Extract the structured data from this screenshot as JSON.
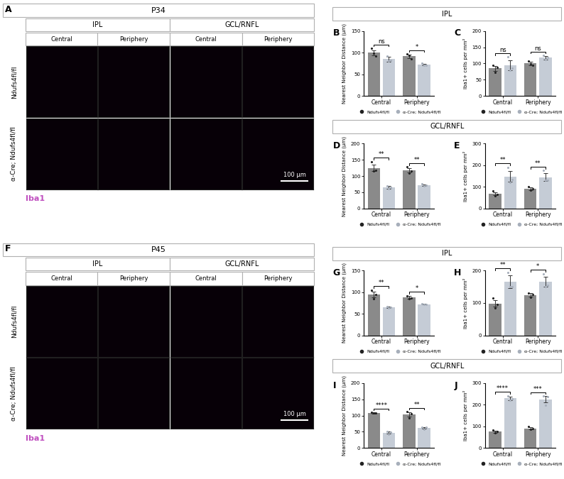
{
  "image_panels": [
    {
      "panel": "A",
      "title": "P34",
      "layers": [
        {
          "name": "IPL",
          "regions": [
            "Central",
            "Periphery"
          ]
        },
        {
          "name": "GCL/RNFL",
          "regions": [
            "Central",
            "Periphery"
          ]
        }
      ],
      "rows": [
        "Ndufs4fl/fl",
        "α-Cre; Ndufs4fl/fl"
      ],
      "scale_bar": "100 µm",
      "stain": "Iba1",
      "stain_color": "#c050c0"
    },
    {
      "panel": "F",
      "title": "P45",
      "layers": [
        {
          "name": "IPL",
          "regions": [
            "Central",
            "Periphery"
          ]
        },
        {
          "name": "GCL/RNFL",
          "regions": [
            "Central",
            "Periphery"
          ]
        }
      ],
      "rows": [
        "Ndufs4fl/fl",
        "α-Cre; Ndufs4fl/fl"
      ],
      "scale_bar": "100 µm",
      "stain": "Iba1",
      "stain_color": "#c050c0"
    }
  ],
  "chart_sections": [
    {
      "title": "IPL",
      "panels": [
        "B",
        "C"
      ]
    },
    {
      "title": "GCL/RNFL",
      "panels": [
        "D",
        "E"
      ]
    },
    {
      "title": "IPL",
      "panels": [
        "G",
        "H"
      ]
    },
    {
      "title": "GCL/RNFL",
      "panels": [
        "I",
        "J"
      ]
    }
  ],
  "chart_data": [
    {
      "panel": "B",
      "type": "bar",
      "y_label": "Nearest Neighbor Distance (µm)",
      "categories": [
        "Central",
        "Periphery"
      ],
      "series": [
        {
          "name": "Ndufs4fl/fl",
          "color": "#8a8a8a",
          "values": [
            100,
            92
          ],
          "errors": [
            6,
            4
          ],
          "points": [
            [
              110,
              98,
              93
            ],
            [
              97,
              94,
              85
            ]
          ]
        },
        {
          "name": "α-Cre; Ndufs4fl/fl",
          "color": "#c5ccd6",
          "values": [
            85,
            72
          ],
          "errors": [
            6,
            2
          ],
          "points": [
            [
              92,
              80,
              83
            ],
            [
              75,
              70,
              71
            ]
          ]
        }
      ],
      "significance": [
        "ns",
        "*"
      ],
      "ylim": [
        0,
        150
      ],
      "yticks": [
        0,
        50,
        100,
        150
      ],
      "legend": "bottom"
    },
    {
      "panel": "C",
      "type": "bar",
      "y_label": "Iba1+ cells per mm²",
      "categories": [
        "Central",
        "Periphery"
      ],
      "series": [
        {
          "name": "Ndufs4fl/fl",
          "color": "#8a8a8a",
          "values": [
            85,
            100
          ],
          "errors": [
            8,
            5
          ],
          "points": [
            [
              95,
              72,
              88
            ],
            [
              108,
              98,
              95
            ]
          ]
        },
        {
          "name": "α-Cre; Ndufs4fl/fl",
          "color": "#c5ccd6",
          "values": [
            95,
            118
          ],
          "errors": [
            15,
            5
          ],
          "points": [
            [
              120,
              80,
              85
            ],
            [
              125,
              112,
              118
            ]
          ]
        }
      ],
      "significance": [
        "ns",
        "ns"
      ],
      "ylim": [
        0,
        200
      ],
      "yticks": [
        0,
        50,
        100,
        150,
        200
      ],
      "legend": "bottom"
    },
    {
      "panel": "D",
      "type": "bar",
      "y_label": "Nearest Neighbor Distance (µm)",
      "categories": [
        "Central",
        "Periphery"
      ],
      "series": [
        {
          "name": "Ndufs4fl/fl",
          "color": "#8a8a8a",
          "values": [
            125,
            118
          ],
          "errors": [
            10,
            6
          ],
          "points": [
            [
              145,
              115,
              118
            ],
            [
              128,
              110,
              116
            ]
          ]
        },
        {
          "name": "α-Cre; Ndufs4fl/fl",
          "color": "#c5ccd6",
          "values": [
            65,
            72
          ],
          "errors": [
            5,
            2
          ],
          "points": [
            [
              70,
              60,
              65
            ],
            [
              75,
              70,
              72
            ]
          ]
        }
      ],
      "significance": [
        "**",
        "**"
      ],
      "ylim": [
        0,
        200
      ],
      "yticks": [
        0,
        50,
        100,
        150,
        200
      ],
      "legend": "bottom"
    },
    {
      "panel": "E",
      "type": "bar",
      "y_label": "Iba1+ cells per mm²",
      "categories": [
        "Central",
        "Periphery"
      ],
      "series": [
        {
          "name": "Ndufs4fl/fl",
          "color": "#8a8a8a",
          "values": [
            68,
            92
          ],
          "errors": [
            8,
            6
          ],
          "points": [
            [
              80,
              58,
              66
            ],
            [
              100,
              85,
              92
            ]
          ]
        },
        {
          "name": "α-Cre; Ndufs4fl/fl",
          "color": "#c5ccd6",
          "values": [
            148,
            145
          ],
          "errors": [
            25,
            18
          ],
          "points": [
            [
              190,
              120,
              135
            ],
            [
              175,
              130,
              130
            ]
          ]
        }
      ],
      "significance": [
        "**",
        "**"
      ],
      "ylim": [
        0,
        300
      ],
      "yticks": [
        0,
        100,
        200,
        300
      ],
      "legend": "bottom"
    },
    {
      "panel": "G",
      "type": "bar",
      "y_label": "Nearest Neighbor Distance (µm)",
      "categories": [
        "Central",
        "Periphery"
      ],
      "series": [
        {
          "name": "Ndufs4fl/fl",
          "color": "#8a8a8a",
          "values": [
            95,
            88
          ],
          "errors": [
            7,
            3
          ],
          "points": [
            [
              105,
              85,
              95
            ],
            [
              92,
              85,
              87
            ]
          ]
        },
        {
          "name": "α-Cre; Ndufs4fl/fl",
          "color": "#c5ccd6",
          "values": [
            65,
            72
          ],
          "errors": [
            2,
            1
          ],
          "points": [
            [
              67,
              63,
              65
            ],
            [
              73,
              71,
              72
            ]
          ]
        }
      ],
      "significance": [
        "**",
        "*"
      ],
      "ylim": [
        0,
        150
      ],
      "yticks": [
        0,
        50,
        100,
        150
      ],
      "legend": "bottom"
    },
    {
      "panel": "H",
      "type": "bar",
      "y_label": "Iba1+ cells per mm²",
      "categories": [
        "Central",
        "Periphery"
      ],
      "series": [
        {
          "name": "Ndufs4fl/fl",
          "color": "#8a8a8a",
          "values": [
            98,
            125
          ],
          "errors": [
            10,
            5
          ],
          "points": [
            [
              115,
              85,
              95
            ],
            [
              130,
              118,
              127
            ]
          ]
        },
        {
          "name": "α-Cre; Ndufs4fl/fl",
          "color": "#c5ccd6",
          "values": [
            165,
            165
          ],
          "errors": [
            20,
            15
          ],
          "points": [
            [
              195,
              150,
              150
            ],
            [
              190,
              150,
              155
            ]
          ]
        }
      ],
      "significance": [
        "**",
        "*"
      ],
      "ylim": [
        0,
        200
      ],
      "yticks": [
        0,
        100,
        200
      ],
      "legend": "bottom"
    },
    {
      "panel": "I",
      "type": "bar",
      "y_label": "Nearest Neighbor Distance (µm)",
      "categories": [
        "Central",
        "Periphery"
      ],
      "series": [
        {
          "name": "Ndufs4fl/fl",
          "color": "#8a8a8a",
          "values": [
            108,
            103
          ],
          "errors": [
            2,
            6
          ],
          "points": [
            [
              110,
              107,
              107
            ],
            [
              112,
              92,
              105
            ]
          ]
        },
        {
          "name": "α-Cre; Ndufs4fl/fl",
          "color": "#c5ccd6",
          "values": [
            47,
            62
          ],
          "errors": [
            3,
            3
          ],
          "points": [
            [
              50,
              43,
              48
            ],
            [
              65,
              58,
              63
            ]
          ]
        }
      ],
      "significance": [
        "****",
        "**"
      ],
      "ylim": [
        0,
        200
      ],
      "yticks": [
        0,
        50,
        100,
        150,
        200
      ],
      "legend": "bottom"
    },
    {
      "panel": "J",
      "type": "bar",
      "y_label": "Iba1+ cells per mm²",
      "categories": [
        "Central",
        "Periphery"
      ],
      "series": [
        {
          "name": "Ndufs4fl/fl",
          "color": "#8a8a8a",
          "values": [
            75,
            90
          ],
          "errors": [
            5,
            5
          ],
          "points": [
            [
              82,
              68,
              75
            ],
            [
              98,
              85,
              88
            ]
          ]
        },
        {
          "name": "α-Cre; Ndufs4fl/fl",
          "color": "#c5ccd6",
          "values": [
            230,
            225
          ],
          "errors": [
            8,
            15
          ],
          "points": [
            [
              242,
              222,
              226
            ],
            [
              240,
              198,
              237
            ]
          ]
        }
      ],
      "significance": [
        "****",
        "***"
      ],
      "ylim": [
        0,
        300
      ],
      "yticks": [
        0,
        100,
        200,
        300
      ],
      "legend": "bottom"
    }
  ]
}
